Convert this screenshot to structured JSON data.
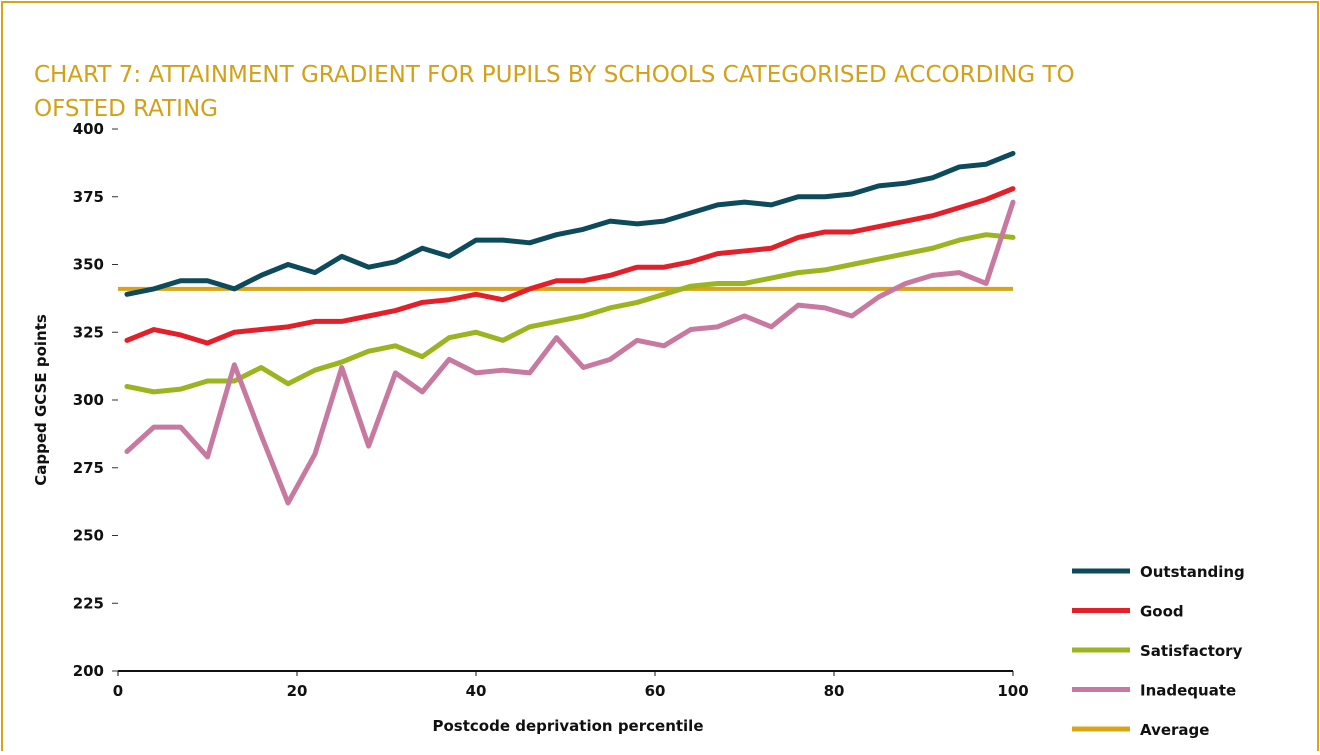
{
  "chart_data": {
    "type": "line",
    "title": "CHART 7: ATTAINMENT GRADIENT FOR PUPILS BY SCHOOLS CATEGORISED ACCORDING TO OFSTED RATING",
    "x_label": "Postcode deprivation percentile",
    "y_label": "Capped GCSE points",
    "x": [
      1,
      4,
      7,
      10,
      13,
      16,
      19,
      22,
      25,
      28,
      31,
      34,
      37,
      40,
      43,
      46,
      49,
      52,
      55,
      58,
      61,
      64,
      67,
      70,
      73,
      76,
      79,
      82,
      85,
      88,
      91,
      94,
      97,
      100
    ],
    "series": [
      {
        "name": "Outstanding",
        "color": "#0d4a5c",
        "values": [
          339,
          341,
          344,
          344,
          341,
          346,
          350,
          347,
          353,
          349,
          351,
          356,
          353,
          359,
          359,
          358,
          361,
          363,
          366,
          365,
          366,
          369,
          372,
          373,
          372,
          375,
          375,
          376,
          379,
          380,
          382,
          386,
          387,
          391
        ]
      },
      {
        "name": "Good",
        "color": "#e3202a",
        "values": [
          322,
          326,
          324,
          321,
          325,
          326,
          327,
          329,
          329,
          331,
          333,
          336,
          337,
          339,
          337,
          341,
          344,
          344,
          346,
          349,
          349,
          351,
          354,
          355,
          356,
          360,
          362,
          362,
          364,
          366,
          368,
          371,
          374,
          378
        ]
      },
      {
        "name": "Satisfactory",
        "color": "#9bb520",
        "values": [
          305,
          303,
          304,
          307,
          307,
          312,
          306,
          311,
          314,
          318,
          320,
          316,
          323,
          325,
          322,
          327,
          329,
          331,
          334,
          336,
          339,
          342,
          343,
          343,
          345,
          347,
          348,
          350,
          352,
          354,
          356,
          359,
          361,
          360
        ]
      },
      {
        "name": "Inadequate",
        "color": "#c879a0",
        "values": [
          281,
          290,
          290,
          279,
          313,
          287,
          262,
          280,
          312,
          283,
          310,
          303,
          315,
          310,
          311,
          310,
          323,
          312,
          315,
          322,
          320,
          326,
          327,
          331,
          327,
          335,
          334,
          331,
          338,
          343,
          346,
          347,
          343,
          373
        ]
      }
    ],
    "average": {
      "name": "Average",
      "color": "#d9a514",
      "value": 341
    },
    "xlim": [
      0,
      100
    ],
    "xticks": [
      0,
      20,
      40,
      60,
      80,
      100
    ],
    "ylim": [
      200,
      400
    ],
    "yticks": [
      200,
      225,
      250,
      275,
      300,
      325,
      350,
      375,
      400
    ]
  }
}
